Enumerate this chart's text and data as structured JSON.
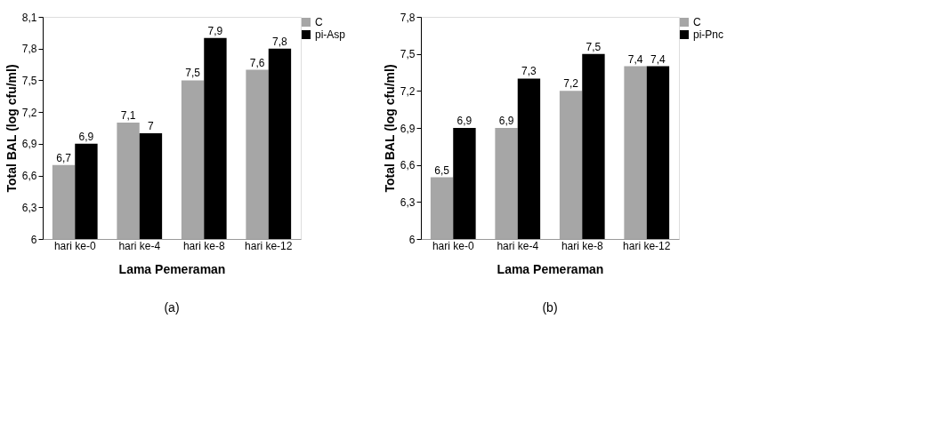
{
  "chart_data": [
    {
      "type": "bar",
      "xlabel": "Lama Pemeraman",
      "ylabel": "Total BAL (log cfu/ml)",
      "categories": [
        "hari ke-0",
        "hari ke-4",
        "hari ke-8",
        "hari ke-12"
      ],
      "series": [
        {
          "name": "C",
          "color": "#a6a6a6",
          "values": [
            6.7,
            7.1,
            7.5,
            7.6
          ],
          "value_labels": [
            "6,7",
            "7,1",
            "7,5",
            "7,6"
          ]
        },
        {
          "name": "pi-Asp",
          "color": "#000000",
          "values": [
            6.9,
            7.0,
            7.9,
            7.8
          ],
          "value_labels": [
            "6,9",
            "7",
            "7,9",
            "7,8"
          ]
        }
      ],
      "ylim": [
        6,
        8.1
      ],
      "yticks": [
        6,
        {
          "value": 6.3,
          "label": "6,3"
        },
        {
          "value": 6.6,
          "label": "6,6"
        },
        {
          "value": 6.9,
          "label": "6,9"
        },
        {
          "value": 7.2,
          "label": "7,2"
        },
        {
          "value": 7.5,
          "label": "7,5"
        },
        {
          "value": 7.8,
          "label": "7,8"
        },
        {
          "value": 8.1,
          "label": "8,1"
        }
      ],
      "grid": false,
      "legend": "top right",
      "annotations": [
        "(a)"
      ]
    },
    {
      "type": "bar",
      "xlabel": "Lama Pemeraman",
      "ylabel": "Total BAL (log cfu/ml)",
      "categories": [
        "hari ke-0",
        "hari ke-4",
        "hari ke-8",
        "hari ke-12"
      ],
      "series": [
        {
          "name": "C",
          "color": "#a6a6a6",
          "values": [
            6.5,
            6.9,
            7.2,
            7.4
          ],
          "value_labels": [
            "6,5",
            "6,9",
            "7,2",
            "7,4"
          ]
        },
        {
          "name": "pi-Pnc",
          "color": "#000000",
          "values": [
            6.9,
            7.3,
            7.5,
            7.4
          ],
          "value_labels": [
            "6,9",
            "7,3",
            "7,5",
            "7,4"
          ]
        }
      ],
      "ylim": [
        6,
        7.8
      ],
      "yticks": [
        6,
        {
          "value": 6.3,
          "label": "6,3"
        },
        {
          "value": 6.6,
          "label": "6,6"
        },
        {
          "value": 6.9,
          "label": "6,9"
        },
        {
          "value": 7.2,
          "label": "7,2"
        },
        {
          "value": 7.5,
          "label": "7,5"
        },
        {
          "value": 7.8,
          "label": "7,8"
        }
      ],
      "grid": false,
      "legend": "top right",
      "annotations": [
        "(b)"
      ]
    }
  ]
}
